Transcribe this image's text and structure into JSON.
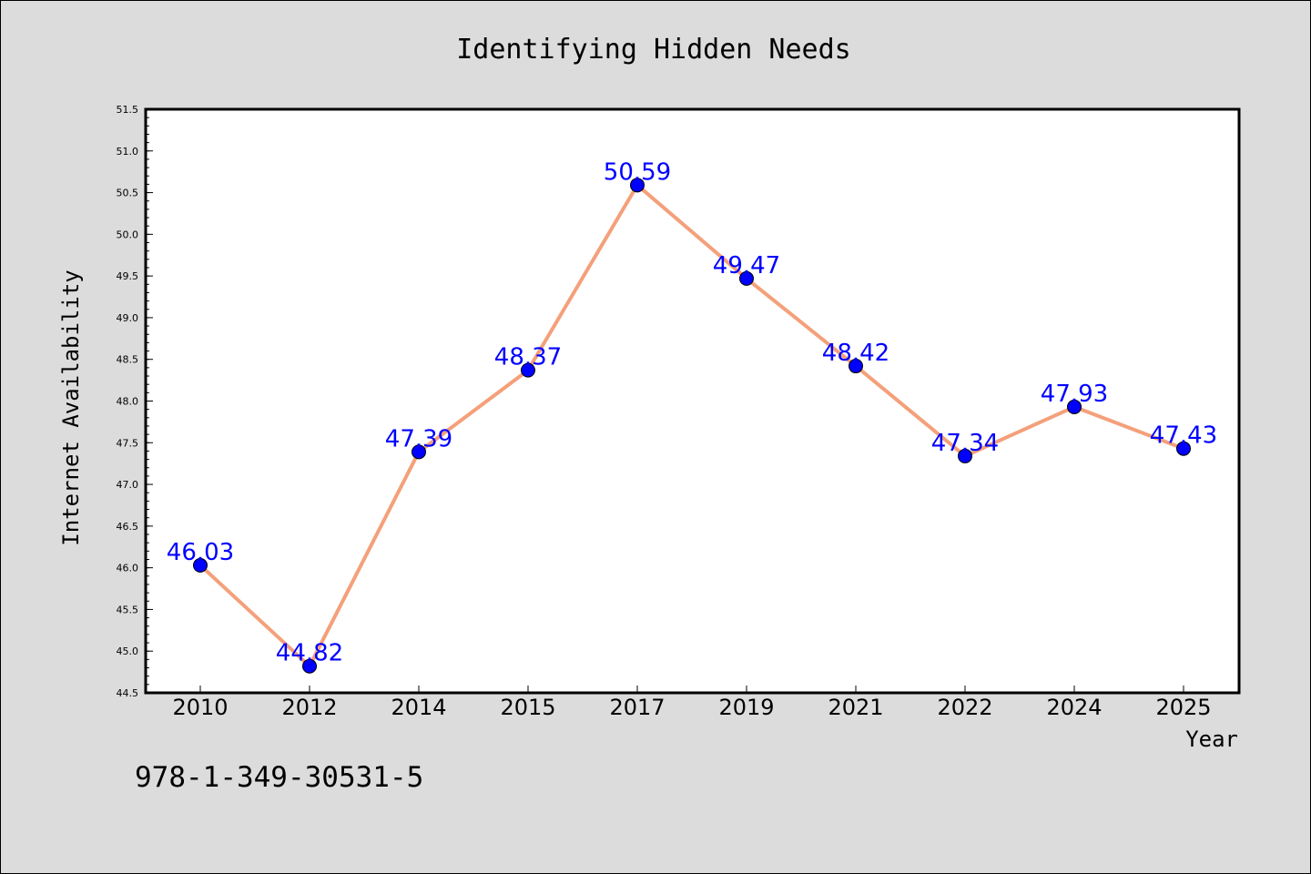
{
  "chart_data": {
    "type": "line",
    "title": "Identifying Hidden Needs",
    "xlabel": "Year",
    "ylabel": "Internet Availability",
    "categories": [
      "2010",
      "2012",
      "2014",
      "2015",
      "2017",
      "2019",
      "2021",
      "2022",
      "2024",
      "2025"
    ],
    "values": [
      46.03,
      44.82,
      47.39,
      48.37,
      50.59,
      49.47,
      48.42,
      47.34,
      47.93,
      47.43
    ],
    "data_labels": [
      "46.03",
      "44.82",
      "47.39",
      "48.37",
      "50.59",
      "49.47",
      "48.42",
      "47.34",
      "47.93",
      "47.43"
    ],
    "ylim": [
      44.5,
      51.5
    ],
    "yticks": [
      "44.5",
      "45.0",
      "45.5",
      "46.0",
      "46.5",
      "47.0",
      "47.5",
      "48.0",
      "48.5",
      "49.0",
      "49.5",
      "50.0",
      "50.5",
      "51.0",
      "51.5"
    ],
    "grid": false,
    "line_color": "#f4a07a",
    "marker_color": "#0000ff",
    "label_color": "#0000ff"
  },
  "annotation": "978-1-349-30531-5"
}
